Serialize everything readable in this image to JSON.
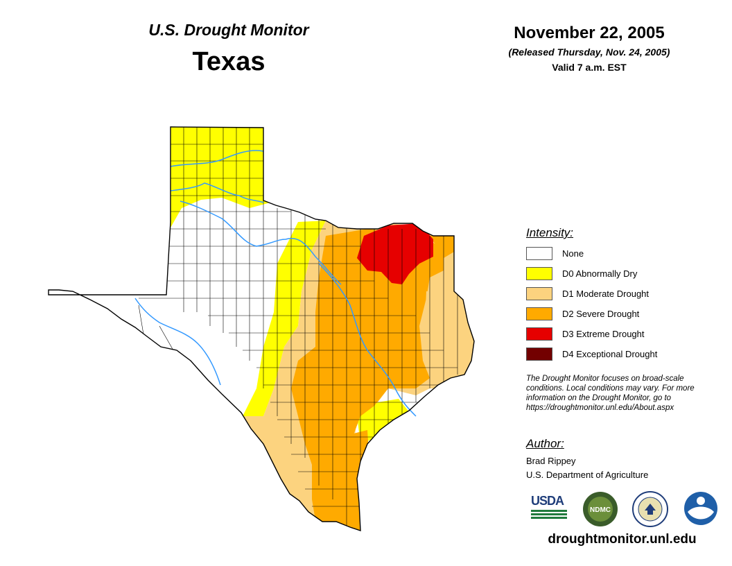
{
  "header": {
    "monitor_title": "U.S. Drought Monitor",
    "state": "Texas",
    "date": "November 22, 2005",
    "released": "(Released Thursday, Nov. 24, 2005)",
    "valid": "Valid 7 a.m. EST"
  },
  "legend": {
    "title": "Intensity:",
    "items": [
      {
        "code": "none",
        "label": "None",
        "color": "#ffffff"
      },
      {
        "code": "D0",
        "label": "D0 Abnormally Dry",
        "color": "#ffff00"
      },
      {
        "code": "D1",
        "label": "D1 Moderate Drought",
        "color": "#fcd37f"
      },
      {
        "code": "D2",
        "label": "D2 Severe Drought",
        "color": "#ffaa00"
      },
      {
        "code": "D3",
        "label": "D3 Extreme Drought",
        "color": "#e60000"
      },
      {
        "code": "D4",
        "label": "D4 Exceptional Drought",
        "color": "#730000"
      }
    ]
  },
  "note": "The Drought Monitor focuses on broad-scale conditions. Local conditions may vary. For more information on the Drought Monitor, go to https://droughtmonitor.unl.edu/About.aspx",
  "author": {
    "title": "Author:",
    "name": "Brad Rippey",
    "organization": "U.S. Department of Agriculture"
  },
  "logos": {
    "usda": "USDA",
    "ndmc": "NDMC",
    "noaa": "NOAA"
  },
  "website": "droughtmonitor.unl.edu",
  "colors": {
    "river": "#3399ff",
    "county_line": "#000000"
  }
}
